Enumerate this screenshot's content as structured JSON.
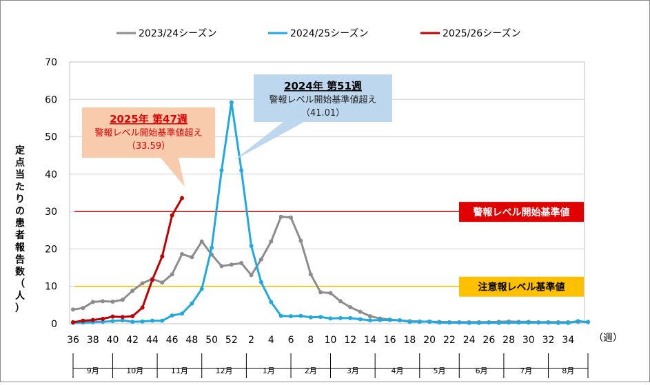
{
  "chart_data": {
    "type": "line",
    "title": "",
    "ylabel": "定点当たりの患者報告数（人）",
    "xlabel_unit": "（週）",
    "ylim": [
      0,
      70
    ],
    "yticks": [
      0,
      10,
      20,
      30,
      40,
      50,
      60,
      70
    ],
    "x_tick_labels": [
      "36",
      "38",
      "40",
      "42",
      "44",
      "46",
      "48",
      "50",
      "52",
      "2",
      "4",
      "6",
      "8",
      "10",
      "12",
      "14",
      "16",
      "18",
      "20",
      "22",
      "24",
      "26",
      "28",
      "30",
      "32",
      "34"
    ],
    "months": [
      {
        "label": "9月",
        "start": 0,
        "end": 4
      },
      {
        "label": "10月",
        "start": 4,
        "end": 8.5
      },
      {
        "label": "11月",
        "start": 8.5,
        "end": 13
      },
      {
        "label": "12月",
        "start": 13,
        "end": 17.5
      },
      {
        "label": "1月",
        "start": 17.5,
        "end": 22
      },
      {
        "label": "2月",
        "start": 22,
        "end": 26
      },
      {
        "label": "3月",
        "start": 26,
        "end": 30.5
      },
      {
        "label": "4月",
        "start": 30.5,
        "end": 35
      },
      {
        "label": "5月",
        "start": 35,
        "end": 39
      },
      {
        "label": "6月",
        "start": 39,
        "end": 43.5
      },
      {
        "label": "7月",
        "start": 43.5,
        "end": 48
      },
      {
        "label": "8月",
        "start": 48,
        "end": 52
      }
    ],
    "series": [
      {
        "name": "2023/24シーズン",
        "color": "#8c8c8c",
        "values": [
          3.8,
          4.2,
          5.8,
          6.0,
          5.9,
          6.4,
          8.8,
          10.8,
          12.0,
          11.0,
          13.2,
          18.6,
          17.8,
          22.0,
          18.5,
          15.4,
          15.8,
          16.2,
          13.0,
          17.2,
          22.0,
          28.6,
          28.4,
          22.2,
          13.2,
          8.4,
          8.2,
          6.0,
          4.4,
          3.2,
          2.0,
          1.4,
          1.1,
          0.9,
          0.7,
          0.6,
          0.5,
          0.5,
          0.4,
          0.4,
          0.4,
          0.4,
          0.4,
          0.5,
          0.6,
          0.5,
          0.5,
          0.4,
          0.4,
          0.4,
          0.4,
          0.5,
          0.5
        ]
      },
      {
        "name": "2024/25シーズン",
        "color": "#1fa9e0",
        "values": [
          0.2,
          0.3,
          0.4,
          0.5,
          0.7,
          0.9,
          0.5,
          0.6,
          0.8,
          0.8,
          2.2,
          2.7,
          5.4,
          9.3,
          20.3,
          41.0,
          59.2,
          41.0,
          20.8,
          11.1,
          5.8,
          2.1,
          2.0,
          2.1,
          1.7,
          1.8,
          1.4,
          1.5,
          1.5,
          1.2,
          0.9,
          1.0,
          1.0,
          0.9,
          0.5,
          0.5,
          0.6,
          0.3,
          0.3,
          0.3,
          0.2,
          0.2,
          0.3,
          0.2,
          0.3,
          0.3,
          0.3,
          0.3,
          0.3,
          0.2,
          0.2,
          0.7,
          0.4
        ]
      },
      {
        "name": "2025/26シーズン",
        "color": "#c00000",
        "values": [
          0.4,
          0.8,
          1.0,
          1.3,
          1.9,
          1.8,
          2.0,
          4.3,
          11.7,
          18.0,
          29.0,
          33.59
        ]
      }
    ],
    "reference_lines": [
      {
        "label": "警報レベル開始基準値",
        "value": 30,
        "color": "#c00000",
        "box_color": "#e00000",
        "text_color": "#ffffff"
      },
      {
        "label": "注意報レベル基準値",
        "value": 10,
        "color": "#f2b800",
        "box_color": "#ffc000",
        "text_color": "#000000"
      }
    ],
    "annotations": [
      {
        "id": "a2025",
        "title": "2025年 第47週",
        "line1": "警報レベル開始基準値超え",
        "line2": "（33.59）",
        "fill": "#f8cbad",
        "title_color": "#e00000",
        "text_color": "#e00000",
        "target_index": 11,
        "target_value": 33.59
      },
      {
        "id": "a2024",
        "title": "2024年 第51週",
        "line1": "警報レベル開始基準値超え",
        "line2": "（41.01）",
        "fill": "#bdd7ee",
        "title_color": "#000000",
        "text_color": "#1f1f1f",
        "target_index": 15,
        "target_value": 41.01
      }
    ]
  }
}
